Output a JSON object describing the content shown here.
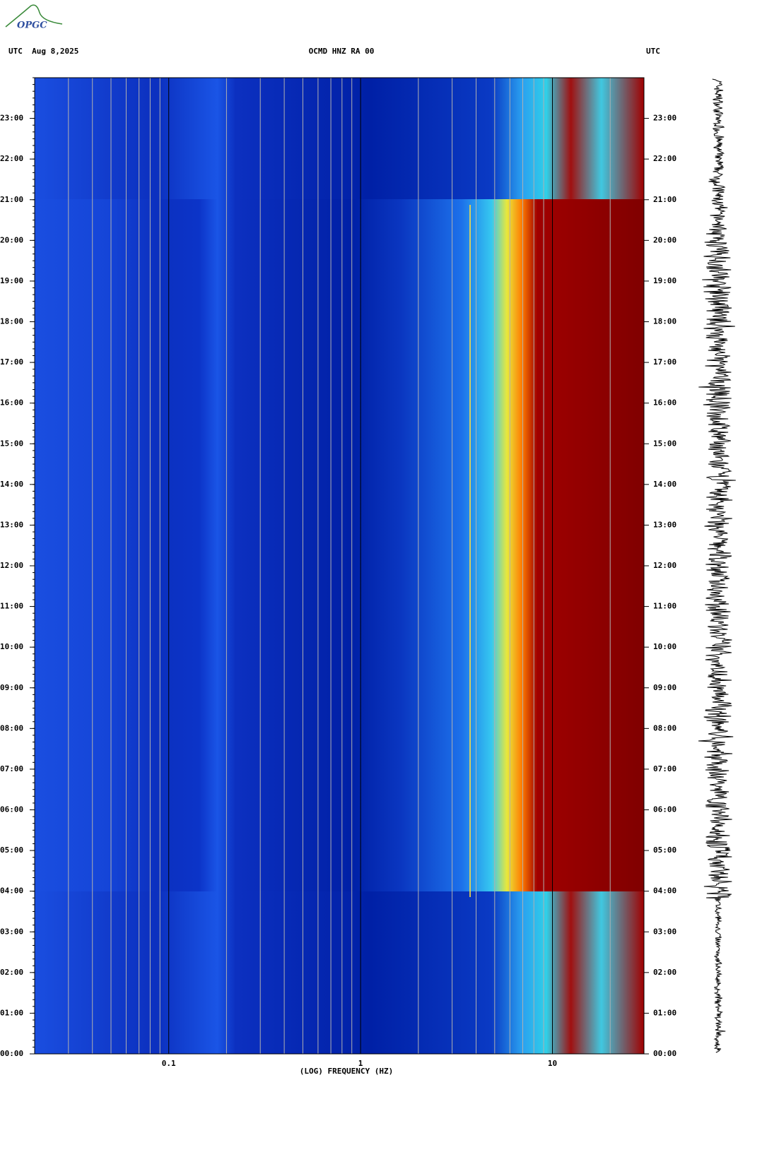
{
  "logo": "OPGC",
  "chart_data": {
    "type": "spectrogram",
    "header_left": "UTC  Aug 8,2025",
    "title": "OCMD HNZ RA 00",
    "header_right": "UTC",
    "x_label": "(LOG) FREQUENCY (HZ)",
    "x_log": true,
    "xlim": [
      0.02,
      30
    ],
    "xticks": [
      0.1,
      1,
      10
    ],
    "xminor_ticks": [
      0.03,
      0.04,
      0.05,
      0.06,
      0.07,
      0.08,
      0.09,
      0.2,
      0.3,
      0.4,
      0.5,
      0.6,
      0.7,
      0.8,
      0.9,
      2,
      3,
      4,
      5,
      6,
      7,
      8,
      9,
      20,
      30
    ],
    "ylim": [
      0,
      24
    ],
    "yticks": [
      {
        "value": 0,
        "label": "00:00"
      },
      {
        "value": 1,
        "label": "01:00"
      },
      {
        "value": 2,
        "label": "02:00"
      },
      {
        "value": 3,
        "label": "03:00"
      },
      {
        "value": 4,
        "label": "04:00"
      },
      {
        "value": 5,
        "label": "05:00"
      },
      {
        "value": 6,
        "label": "06:00"
      },
      {
        "value": 7,
        "label": "07:00"
      },
      {
        "value": 8,
        "label": "08:00"
      },
      {
        "value": 9,
        "label": "09:00"
      },
      {
        "value": 10,
        "label": "10:00"
      },
      {
        "value": 11,
        "label": "11:00"
      },
      {
        "value": 12,
        "label": "12:00"
      },
      {
        "value": 13,
        "label": "13:00"
      },
      {
        "value": 14,
        "label": "14:00"
      },
      {
        "value": 15,
        "label": "15:00"
      },
      {
        "value": 16,
        "label": "16:00"
      },
      {
        "value": 17,
        "label": "17:00"
      },
      {
        "value": 18,
        "label": "18:00"
      },
      {
        "value": 19,
        "label": "19:00"
      },
      {
        "value": 20,
        "label": "20:00"
      },
      {
        "value": 21,
        "label": "21:00"
      },
      {
        "value": 22,
        "label": "22:00"
      },
      {
        "value": 23,
        "label": "23:00"
      }
    ]
  }
}
